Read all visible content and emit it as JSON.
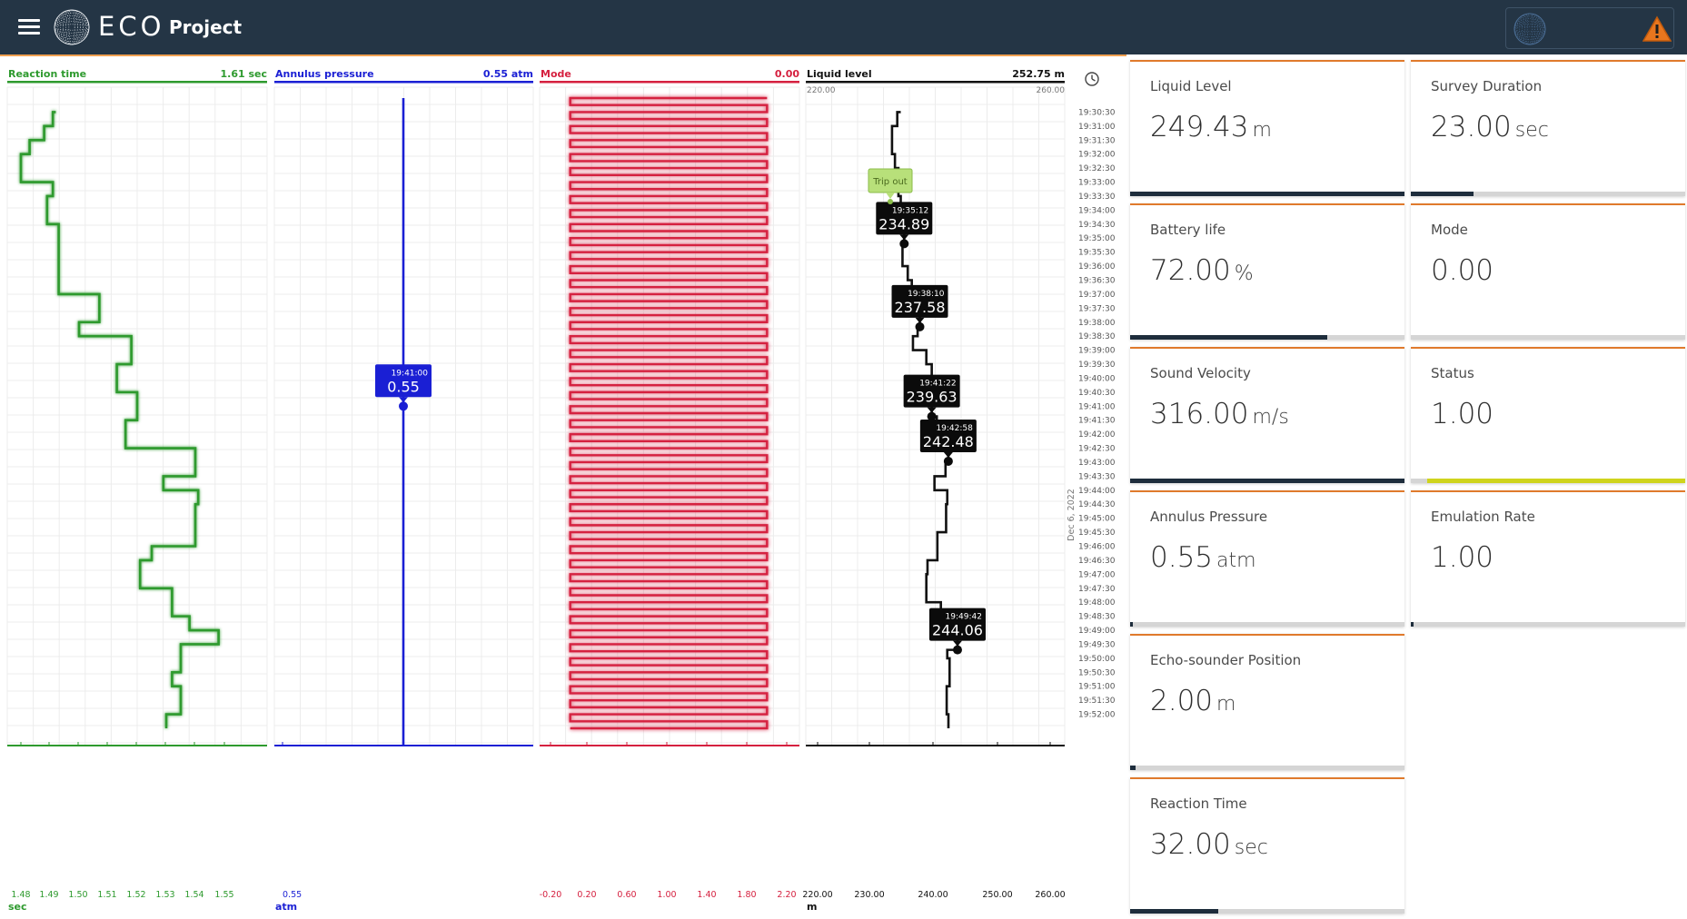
{
  "header": {
    "logo_text": "ECO",
    "project_title": "Project",
    "icons": [
      "menu-icon",
      "globe-logo",
      "warning-icon"
    ]
  },
  "tracks": [
    {
      "label": "Reaction time",
      "value": "1.61 sec",
      "color": "#2e9a2e",
      "unit": "sec",
      "ticks": [
        "1.48",
        "1.49",
        "1.50",
        "1.51",
        "1.52",
        "1.53",
        "1.54",
        "1.55"
      ]
    },
    {
      "label": "Annulus pressure",
      "value": "0.55 atm",
      "color": "#1a1fd4",
      "unit": "atm",
      "ticks": [
        "0.55"
      ]
    },
    {
      "label": "Mode",
      "value": "0.00",
      "color": "#d5203f",
      "unit": "",
      "ticks": [
        "-0.20",
        "0.20",
        "0.60",
        "1.00",
        "1.40",
        "1.80",
        "2.20"
      ]
    },
    {
      "label": "Liquid level",
      "value": "252.75 m",
      "color": "#111111",
      "unit": "m",
      "range_min": "220.00",
      "range_max": "260.00",
      "ticks": [
        "220.00",
        "230.00",
        "240.00",
        "250.00",
        "260.00"
      ]
    }
  ],
  "time_axis": {
    "date": "Dec 6, 2022",
    "labels": [
      "19:30:30",
      "19:31:00",
      "19:31:30",
      "19:32:00",
      "19:32:30",
      "19:33:00",
      "19:33:30",
      "19:34:00",
      "19:34:30",
      "19:35:00",
      "19:35:30",
      "19:36:00",
      "19:36:30",
      "19:37:00",
      "19:37:30",
      "19:38:00",
      "19:38:30",
      "19:39:00",
      "19:39:30",
      "19:40:00",
      "19:40:30",
      "19:41:00",
      "19:41:30",
      "19:42:00",
      "19:42:30",
      "19:43:00",
      "19:43:30",
      "19:44:00",
      "19:44:30",
      "19:45:00",
      "19:45:30",
      "19:46:00",
      "19:46:30",
      "19:47:00",
      "19:47:30",
      "19:48:00",
      "19:48:30",
      "19:49:00",
      "19:49:30",
      "19:50:00",
      "19:50:30",
      "19:51:00",
      "19:51:30",
      "19:52:00"
    ]
  },
  "annotations": {
    "pressure_marker": {
      "time": "19:41:00",
      "value": "0.55"
    },
    "trip_out": "Trip out",
    "level_markers": [
      {
        "time": "19:35:12",
        "value": "234.89"
      },
      {
        "time": "19:38:10",
        "value": "237.58"
      },
      {
        "time": "19:41:22",
        "value": "239.63"
      },
      {
        "time": "19:42:58",
        "value": "242.48"
      },
      {
        "time": "19:49:42",
        "value": "244.06"
      }
    ]
  },
  "tiles": [
    {
      "label": "Liquid Level",
      "value": "249.43",
      "unit": "m",
      "fill": 1.0
    },
    {
      "label": "Survey Duration",
      "value": "23.00",
      "unit": "sec",
      "fill": 0.23
    },
    {
      "label": "Battery life",
      "value": "72.00",
      "unit": "%",
      "fill": 0.72
    },
    {
      "label": "Mode",
      "value": "0.00",
      "unit": "",
      "fill": 0.0
    },
    {
      "label": "Sound Velocity",
      "value": "316.00",
      "unit": "m/s",
      "fill": 1.0
    },
    {
      "label": "Status",
      "value": "1.00",
      "unit": "",
      "fill": 1.0,
      "fill_color": "#cfd41c"
    },
    {
      "label": "Annulus Pressure",
      "value": "0.55",
      "unit": "atm",
      "fill": 0.01
    },
    {
      "label": "Emulation Rate",
      "value": "1.00",
      "unit": "",
      "fill": 0.01
    },
    {
      "label": "Echo-sounder Position",
      "value": "2.00",
      "unit": "m",
      "fill": 0.02
    },
    {
      "label": "Reaction Time",
      "value": "32.00",
      "unit": "sec",
      "fill": 0.32
    }
  ],
  "chart_data": [
    {
      "type": "line",
      "title": "Reaction time",
      "xlabel": "sec",
      "x_range": [
        1.47,
        1.559
      ],
      "series": [
        {
          "name": "Reaction time",
          "points": [
            [
              1.492,
              "19:30:30"
            ],
            [
              1.491,
              "19:31:00"
            ],
            [
              1.488,
              "19:31:30"
            ],
            [
              1.483,
              "19:32:00"
            ],
            [
              1.48,
              "19:33:00"
            ],
            [
              1.491,
              "19:33:30"
            ],
            [
              1.489,
              "19:34:30"
            ],
            [
              1.493,
              "19:35:30"
            ],
            [
              1.493,
              "19:37:00"
            ],
            [
              1.507,
              "19:38:00"
            ],
            [
              1.5,
              "19:38:30"
            ],
            [
              1.518,
              "19:39:30"
            ],
            [
              1.513,
              "19:40:30"
            ],
            [
              1.52,
              "19:41:30"
            ],
            [
              1.516,
              "19:42:30"
            ],
            [
              1.54,
              "19:43:30"
            ],
            [
              1.529,
              "19:44:00"
            ],
            [
              1.541,
              "19:44:30"
            ],
            [
              1.54,
              "19:46:00"
            ],
            [
              1.525,
              "19:46:30"
            ],
            [
              1.521,
              "19:47:30"
            ],
            [
              1.532,
              "19:48:00"
            ],
            [
              1.532,
              "19:48:30"
            ],
            [
              1.538,
              "19:49:00"
            ],
            [
              1.548,
              "19:49:30"
            ],
            [
              1.535,
              "19:50:00"
            ],
            [
              1.535,
              "19:50:30"
            ],
            [
              1.532,
              "19:51:00"
            ],
            [
              1.535,
              "19:51:30"
            ],
            [
              1.535,
              "19:52:00"
            ],
            [
              1.53,
              "19:52:30"
            ]
          ]
        }
      ]
    },
    {
      "type": "line",
      "title": "Annulus pressure",
      "xlabel": "atm",
      "series": [
        {
          "name": "Annulus pressure",
          "value": 0.55
        }
      ]
    },
    {
      "type": "line",
      "title": "Mode",
      "x_range": [
        -0.2,
        2.2
      ],
      "series": [
        {
          "name": "Mode",
          "values": [
            0,
            2
          ],
          "pattern": "square-wave",
          "half_period_sec": 15
        }
      ]
    },
    {
      "type": "line",
      "title": "Liquid level",
      "xlabel": "m",
      "x_range": [
        220,
        260
      ],
      "series": [
        {
          "name": "Liquid level",
          "points": [
            [
              234.3,
              "19:30:30"
            ],
            [
              233.7,
              "19:31:00"
            ],
            [
              232.8,
              "19:32:00"
            ],
            [
              233.3,
              "19:32:30"
            ],
            [
              233.9,
              "19:33:30"
            ],
            [
              234.3,
              "19:34:30"
            ],
            [
              234.89,
              "19:35:12"
            ],
            [
              234.6,
              "19:36:00"
            ],
            [
              235.5,
              "19:36:30"
            ],
            [
              236.2,
              "19:37:00"
            ],
            [
              237.58,
              "19:38:10"
            ],
            [
              237.2,
              "19:38:30"
            ],
            [
              236.4,
              "19:39:00"
            ],
            [
              238.7,
              "19:39:30"
            ],
            [
              239.63,
              "19:41:22"
            ],
            [
              240.5,
              "19:42:00"
            ],
            [
              242.48,
              "19:42:58"
            ],
            [
              242.0,
              "19:43:30"
            ],
            [
              240.1,
              "19:44:00"
            ],
            [
              242.3,
              "19:44:30"
            ],
            [
              242.1,
              "19:45:30"
            ],
            [
              240.6,
              "19:46:30"
            ],
            [
              238.9,
              "19:47:00"
            ],
            [
              238.7,
              "19:48:00"
            ],
            [
              241.2,
              "19:48:30"
            ],
            [
              244.06,
              "19:49:42"
            ],
            [
              242.3,
              "19:50:00"
            ],
            [
              242.7,
              "19:51:00"
            ],
            [
              242.2,
              "19:52:00"
            ],
            [
              242.5,
              "19:52:30"
            ]
          ]
        }
      ]
    }
  ]
}
